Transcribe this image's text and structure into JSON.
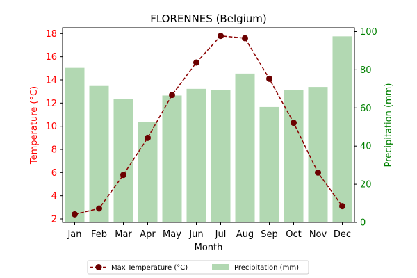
{
  "chart_data": {
    "type": "bar+line",
    "title": "FLORENNES (Belgium)",
    "xlabel": "Month",
    "categories": [
      "Jan",
      "Feb",
      "Mar",
      "Apr",
      "May",
      "Jun",
      "Jul",
      "Aug",
      "Sep",
      "Oct",
      "Nov",
      "Dec"
    ],
    "temperature": {
      "name": "Max Temperature (°C)",
      "axis_label": "Temperature (°C)",
      "ylim": [
        1.7,
        18.5
      ],
      "ticks": [
        2,
        4,
        6,
        8,
        10,
        12,
        14,
        16,
        18
      ],
      "values": [
        2.4,
        2.9,
        5.8,
        9.0,
        12.7,
        15.5,
        17.8,
        17.6,
        14.1,
        10.3,
        6.0,
        3.1
      ],
      "color": "#8b0000",
      "marker_color": "#6b0000",
      "axis_color": "#ff0000"
    },
    "precipitation": {
      "name": "Precipitation (mm)",
      "axis_label": "Precipitation (mm)",
      "ylim": [
        0,
        102
      ],
      "ticks": [
        0,
        20,
        40,
        60,
        80,
        100
      ],
      "values": [
        81,
        71.5,
        64.5,
        52.5,
        66.5,
        70,
        69.5,
        78,
        60.5,
        69.5,
        71,
        97.5
      ],
      "color": "#b2d8b2",
      "axis_color": "#008000"
    },
    "legend": {
      "placement": "bottom-center",
      "columns": 2
    },
    "grid": false
  }
}
